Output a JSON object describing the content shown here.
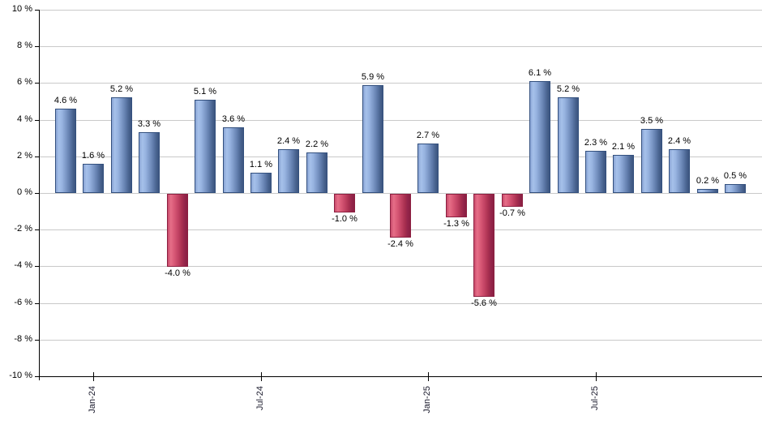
{
  "chart_data": {
    "type": "bar",
    "title": "",
    "description": "Monthly percentage returns bar chart; blue bars are positive months, red bars are negative months",
    "unit": "%",
    "values": [
      4.6,
      1.6,
      5.2,
      3.3,
      -4.0,
      5.1,
      3.6,
      1.1,
      2.4,
      2.2,
      -1.0,
      5.9,
      -2.4,
      2.7,
      -1.3,
      -5.6,
      -0.7,
      6.1,
      5.2,
      2.3,
      2.1,
      3.5,
      2.4,
      0.2,
      0.5
    ],
    "bar_label_suffix": " %",
    "x_ticks": [
      {
        "label": "Jan-24",
        "bar_index": 1
      },
      {
        "label": "Jul-24",
        "bar_index": 7
      },
      {
        "label": "Jan-25",
        "bar_index": 13
      },
      {
        "label": "Jul-25",
        "bar_index": 19
      }
    ],
    "y_ticks": [
      {
        "label": "10 %",
        "value": 10
      },
      {
        "label": "8 %",
        "value": 8
      },
      {
        "label": "6 %",
        "value": 6
      },
      {
        "label": "4 %",
        "value": 4
      },
      {
        "label": "2 %",
        "value": 2
      },
      {
        "label": "0 %",
        "value": 0
      },
      {
        "label": "-2 %",
        "value": -2
      },
      {
        "label": "-4 %",
        "value": -4
      },
      {
        "label": "-6 %",
        "value": -6
      },
      {
        "label": "-8 %",
        "value": -8
      },
      {
        "label": "-10 %",
        "value": -10
      }
    ],
    "ylim": [
      -10,
      10
    ],
    "grid": "horizontal",
    "legend": "none",
    "colors": {
      "positive_light": "#a6c1ea",
      "positive_dark": "#3d5680",
      "positive_border": "#33507e",
      "negative_light": "#e66e88",
      "negative_dark": "#8b1f42",
      "negative_border": "#8c1f40",
      "gridline": "#c9c9c9",
      "axis": "#000000",
      "value_label_text": "#000000",
      "tick_label_text": "#1c1c2e",
      "background": "#ffffff"
    }
  }
}
